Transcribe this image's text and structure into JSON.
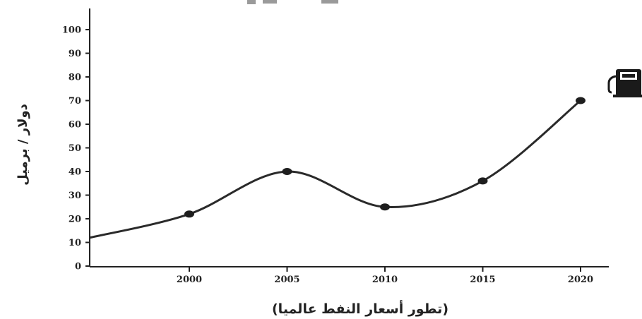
{
  "chart_data": {
    "type": "line",
    "title": "",
    "xlabel": "(تطور أسعار النفط عالميا)",
    "ylabel": "دولار / برميل",
    "x_ticks": [
      "2000",
      "2005",
      "2010",
      "2015",
      "2020"
    ],
    "y_ticks": [
      "0",
      "10",
      "20",
      "30",
      "40",
      "50",
      "60",
      "70",
      "80",
      "90",
      "100"
    ],
    "xlim": [
      1995,
      2021
    ],
    "ylim": [
      0,
      100
    ],
    "series": [
      {
        "x": [
          1995,
          2000,
          2005,
          2010,
          2015,
          2020
        ],
        "values": [
          12,
          22,
          40,
          25,
          36,
          70
        ],
        "markers": [
          false,
          true,
          true,
          true,
          true,
          true
        ]
      }
    ],
    "grid": false,
    "line_color": "#2a2a2a",
    "icon": "fuel-pump-icon"
  }
}
